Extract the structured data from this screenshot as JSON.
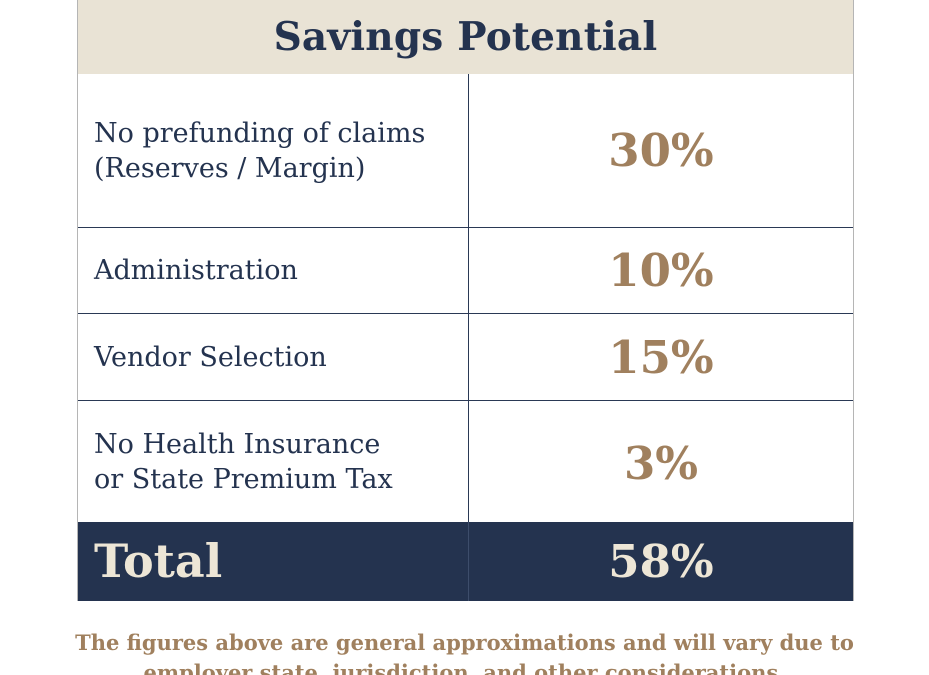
{
  "table": {
    "title": "Savings Potential",
    "rows": [
      {
        "label_lines": [
          "No prefunding of claims",
          "(Reserves / Margin)"
        ],
        "value": "30%"
      },
      {
        "label_lines": [
          "Administration"
        ],
        "value": "10%"
      },
      {
        "label_lines": [
          "Vendor Selection"
        ],
        "value": "15%"
      },
      {
        "label_lines": [
          "No Health Insurance",
          "or State Premium Tax"
        ],
        "value": "3%"
      }
    ],
    "total": {
      "label": "Total",
      "value": "58%"
    }
  },
  "footnote": {
    "lines": [
      "The figures above are general approximations and will vary due to",
      "employer state, jurisdiction, and other considerations."
    ]
  },
  "colors": {
    "navy": "#24334f",
    "tan": "#a0805e",
    "header_bg": "#e9e3d5",
    "total_text": "#ede6d6"
  }
}
